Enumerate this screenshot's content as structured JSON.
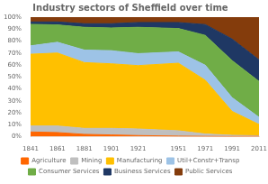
{
  "chart_data": {
    "type": "area",
    "title": "Industry sectors of Sheffield over time",
    "x": [
      1841,
      1861,
      1881,
      1901,
      1921,
      1951,
      1971,
      1991,
      2011
    ],
    "xlim": [
      1841,
      2011
    ],
    "xticks": [
      1841,
      1861,
      1881,
      1901,
      1921,
      1951,
      1971,
      1991,
      2011
    ],
    "ylim": [
      0,
      100
    ],
    "yticks": [
      {
        "value": 0,
        "label": "0%"
      },
      {
        "value": 10,
        "label": "10%"
      },
      {
        "value": 20,
        "label": "20%"
      },
      {
        "value": 30,
        "label": "30%"
      },
      {
        "value": 40,
        "label": "40%"
      },
      {
        "value": 50,
        "label": "50%"
      },
      {
        "value": 60,
        "label": "60%"
      },
      {
        "value": 70,
        "label": "70%"
      },
      {
        "value": 80,
        "label": "80%"
      },
      {
        "value": 90,
        "label": "90%"
      },
      {
        "value": 100,
        "label": "100%"
      }
    ],
    "stacked": true,
    "grid": false,
    "legend": "bottom",
    "series": [
      {
        "name": "Agriculture",
        "color": "#FF6600",
        "values": [
          4.0,
          3.5,
          2.0,
          1.5,
          1.0,
          0.5,
          0.3,
          0.2,
          0.3
        ]
      },
      {
        "name": "Mining",
        "color": "#BFBFBF",
        "values": [
          5.0,
          5.5,
          5.0,
          5.5,
          5.5,
          4.5,
          2.0,
          1.0,
          0.5
        ]
      },
      {
        "name": "Manufacturing",
        "color": "#FFC000",
        "values": [
          60.0,
          61.0,
          55.0,
          54.0,
          53.0,
          56.5,
          45.0,
          20.0,
          9.5
        ]
      },
      {
        "name": "Util+Constr+Transp",
        "color": "#9DC3E6",
        "values": [
          7.0,
          9.0,
          10.5,
          11.0,
          10.0,
          9.5,
          12.5,
          11.5,
          6.0
        ]
      },
      {
        "name": "Consumer Services",
        "color": "#70AD47",
        "values": [
          18.0,
          14.5,
          19.0,
          19.0,
          22.0,
          19.5,
          25.0,
          31.0,
          30.0
        ]
      },
      {
        "name": "Business Services",
        "color": "#1F3864",
        "values": [
          2.0,
          2.5,
          3.0,
          3.5,
          4.0,
          5.0,
          9.0,
          18.0,
          18.0
        ]
      },
      {
        "name": "Public Services",
        "color": "#843C0C",
        "values": [
          4.0,
          4.0,
          5.5,
          5.5,
          4.5,
          4.5,
          6.2,
          18.3,
          35.7
        ]
      }
    ]
  }
}
